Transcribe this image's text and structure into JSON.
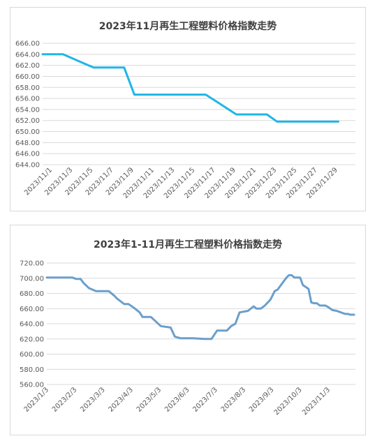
{
  "chart_data": [
    {
      "type": "line",
      "title": "2023年11月再生工程塑料价格指数走势",
      "xlabel": "",
      "ylabel": "",
      "ylim": [
        644,
        666
      ],
      "yticks": [
        "644.00",
        "646.00",
        "648.00",
        "650.00",
        "652.00",
        "654.00",
        "656.00",
        "658.00",
        "660.00",
        "662.00",
        "664.00",
        "666.00"
      ],
      "categories": [
        "2023/11/1",
        "2023/11/2",
        "2023/11/3",
        "2023/11/4",
        "2023/11/5",
        "2023/11/6",
        "2023/11/7",
        "2023/11/8",
        "2023/11/9",
        "2023/11/10",
        "2023/11/11",
        "2023/11/12",
        "2023/11/13",
        "2023/11/14",
        "2023/11/15",
        "2023/11/16",
        "2023/11/17",
        "2023/11/18",
        "2023/11/19",
        "2023/11/20",
        "2023/11/21",
        "2023/11/22",
        "2023/11/23",
        "2023/11/24",
        "2023/11/25",
        "2023/11/26",
        "2023/11/27",
        "2023/11/28",
        "2023/11/29",
        "2023/11/30"
      ],
      "xtick_labels": [
        "2023/11/1",
        "2023/11/3",
        "2023/11/5",
        "2023/11/7",
        "2023/11/9",
        "2023/11/11",
        "2023/11/13",
        "2023/11/15",
        "2023/11/17",
        "2023/11/19",
        "2023/11/21",
        "2023/11/23",
        "2023/11/25",
        "2023/11/27",
        "2023/11/29"
      ],
      "series": [
        {
          "values": [
            664.0,
            664.0,
            664.0,
            663.2,
            662.4,
            661.6,
            661.6,
            661.6,
            661.6,
            656.7,
            656.7,
            656.7,
            656.7,
            656.7,
            656.7,
            656.7,
            656.7,
            655.5,
            654.3,
            653.1,
            653.1,
            653.1,
            653.1,
            651.8,
            651.8,
            651.8,
            651.8,
            651.8,
            651.8,
            651.8
          ]
        }
      ],
      "line_color": "#1fb6e6",
      "grid": true,
      "legend": "none"
    },
    {
      "type": "line",
      "title": "2023年1-11月再生工程塑料价格指数走势",
      "xlabel": "",
      "ylabel": "",
      "ylim": [
        560,
        720
      ],
      "yticks": [
        "560.00",
        "580.00",
        "600.00",
        "620.00",
        "640.00",
        "660.00",
        "680.00",
        "700.00",
        "720.00"
      ],
      "xtick_labels": [
        "2023/1/3",
        "2023/2/3",
        "2023/3/3",
        "2023/4/3",
        "2023/5/3",
        "2023/6/3",
        "2023/7/3",
        "2023/8/3",
        "2023/9/3",
        "2023/10/3",
        "2023/11/3"
      ],
      "series": [
        {
          "x": [
            0,
            0.6,
            0.9,
            1.05,
            1.2,
            1.3,
            1.5,
            1.75,
            2.1,
            2.2,
            2.4,
            2.5,
            2.75,
            2.9,
            3.1,
            3.3,
            3.4,
            3.5,
            3.7,
            4.05,
            4.4,
            4.55,
            4.75,
            4.95,
            5.05,
            5.2,
            5.6,
            5.85,
            6.05,
            6.1,
            6.4,
            6.55,
            6.7,
            6.85,
            7.0,
            7.15,
            7.35,
            7.45,
            7.6,
            7.75,
            7.85,
            7.95,
            8.1,
            8.2,
            8.3,
            8.5,
            8.6,
            8.7,
            8.8,
            8.9,
            9.0,
            9.1,
            9.3,
            9.4,
            9.5,
            9.6,
            9.7,
            9.8,
            9.9,
            10.0,
            10.15,
            10.3,
            10.45,
            10.6,
            10.7,
            10.8,
            10.92
          ],
          "values": [
            701,
            701,
            701,
            699,
            699,
            694,
            687,
            683,
            683,
            683,
            677,
            673,
            666,
            666,
            661,
            655,
            649,
            649,
            649,
            637,
            635,
            623,
            621,
            621,
            621,
            621,
            620,
            620,
            631,
            631,
            631,
            637,
            640,
            655,
            656,
            657,
            663,
            660,
            660,
            664,
            668,
            672,
            683,
            685,
            690,
            700,
            704,
            704,
            701,
            701,
            701,
            691,
            686,
            668,
            667,
            667,
            664,
            664,
            664,
            662,
            658,
            657,
            655,
            653,
            653,
            652,
            652
          ]
        }
      ],
      "line_color": "#6a9fcc",
      "grid": true,
      "legend": "none"
    }
  ]
}
